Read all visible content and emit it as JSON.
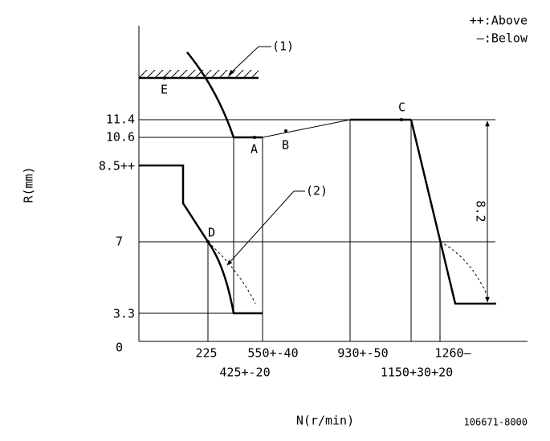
{
  "legend": {
    "above": "++:Above",
    "below": "—:Below"
  },
  "callouts": [
    "(1)",
    "(2)"
  ],
  "points": [
    "E",
    "A",
    "B",
    "C",
    "D"
  ],
  "y_labels": [
    "11.4",
    "10.6",
    "8.5++",
    "7",
    "3.3",
    "0"
  ],
  "x_labels": [
    "225",
    "425+-20",
    "550+-40",
    "930+-50",
    "1150+30+20",
    "1260—"
  ],
  "y_axis_title": "R(mm)",
  "x_axis_title": "N(r/min)",
  "dimension": "8.2",
  "drawing_number": "106671-8000"
}
